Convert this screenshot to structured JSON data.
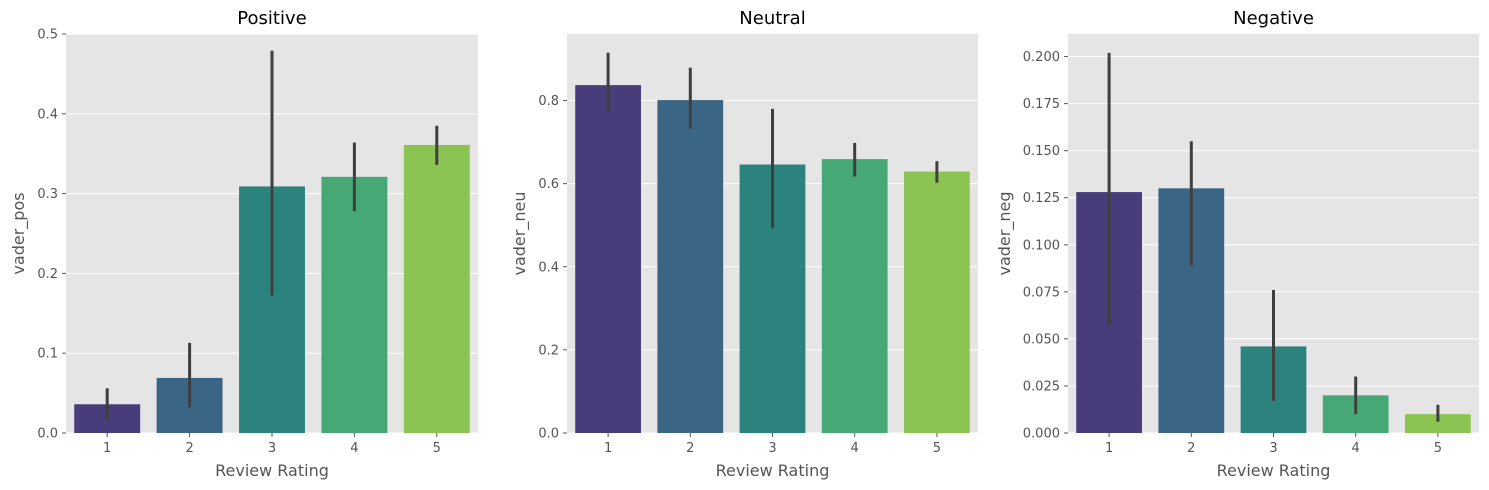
{
  "chart_data": [
    {
      "type": "bar",
      "title": "Positive",
      "xlabel": "Review Rating",
      "ylabel": "vader_pos",
      "categories": [
        "1",
        "2",
        "3",
        "4",
        "5"
      ],
      "values": [
        0.036,
        0.069,
        0.309,
        0.321,
        0.361
      ],
      "error_low": [
        0.016,
        0.032,
        0.172,
        0.278,
        0.336
      ],
      "error_high": [
        0.056,
        0.113,
        0.479,
        0.364,
        0.385
      ],
      "ylim": [
        0,
        0.5
      ],
      "yticks": [
        0.0,
        0.1,
        0.2,
        0.3,
        0.4,
        0.5
      ],
      "ytick_labels": [
        "0.0",
        "0.1",
        "0.2",
        "0.3",
        "0.4",
        "0.5"
      ],
      "grid": true,
      "colors": [
        "#483d7a",
        "#3b6585",
        "#2c837e",
        "#46a874",
        "#8bc453"
      ]
    },
    {
      "type": "bar",
      "title": "Neutral",
      "xlabel": "Review Rating",
      "ylabel": "vader_neu",
      "categories": [
        "1",
        "2",
        "3",
        "4",
        "5"
      ],
      "values": [
        0.837,
        0.801,
        0.646,
        0.659,
        0.629
      ],
      "error_low": [
        0.772,
        0.732,
        0.492,
        0.617,
        0.602
      ],
      "error_high": [
        0.915,
        0.879,
        0.78,
        0.698,
        0.654
      ],
      "ylim": [
        0,
        0.96
      ],
      "yticks": [
        0.0,
        0.2,
        0.4,
        0.6,
        0.8
      ],
      "ytick_labels": [
        "0.0",
        "0.2",
        "0.4",
        "0.6",
        "0.8"
      ],
      "grid": true,
      "colors": [
        "#483d7a",
        "#3b6585",
        "#2c837e",
        "#46a874",
        "#8bc453"
      ]
    },
    {
      "type": "bar",
      "title": "Negative",
      "xlabel": "Review Rating",
      "ylabel": "vader_neg",
      "categories": [
        "1",
        "2",
        "3",
        "4",
        "5"
      ],
      "values": [
        0.128,
        0.13,
        0.046,
        0.02,
        0.01
      ],
      "error_low": [
        0.057,
        0.089,
        0.017,
        0.01,
        0.006
      ],
      "error_high": [
        0.202,
        0.155,
        0.076,
        0.03,
        0.015
      ],
      "ylim": [
        0,
        0.212
      ],
      "yticks": [
        0.0,
        0.025,
        0.05,
        0.075,
        0.1,
        0.125,
        0.15,
        0.175,
        0.2
      ],
      "ytick_labels": [
        "0.000",
        "0.025",
        "0.050",
        "0.075",
        "0.100",
        "0.125",
        "0.150",
        "0.175",
        "0.200"
      ],
      "grid": true,
      "colors": [
        "#483d7a",
        "#3b6585",
        "#2c837e",
        "#46a874",
        "#8bc453"
      ]
    }
  ]
}
